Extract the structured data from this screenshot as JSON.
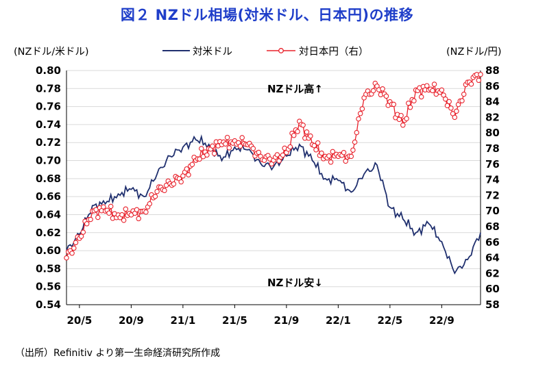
{
  "title": "図２ NZドル相場(対米ドル、日本円)の推移",
  "source": "（出所）Refinitiv より第一生命経済研究所作成",
  "chart_data": {
    "type": "line",
    "title": "図２ NZドル相場(対米ドル、日本円)の推移",
    "ylabel_left": "(NZドル/米ドル)",
    "ylabel_right": "(NZドル/円)",
    "x_ticks": [
      "20/5",
      "20/9",
      "21/1",
      "21/5",
      "21/9",
      "22/1",
      "22/5",
      "22/9"
    ],
    "y_left_ticks": [
      "0.80",
      "0.78",
      "0.76",
      "0.74",
      "0.72",
      "0.70",
      "0.68",
      "0.66",
      "0.64",
      "0.62",
      "0.60",
      "0.58",
      "0.56",
      "0.54"
    ],
    "y_right_ticks": [
      "88",
      "86",
      "84",
      "82",
      "80",
      "78",
      "76",
      "74",
      "72",
      "70",
      "68",
      "66",
      "64",
      "62",
      "60",
      "58"
    ],
    "ylim_left": [
      0.54,
      0.8
    ],
    "ylim_right": [
      58,
      88
    ],
    "grid": true,
    "legend_position": "top-center",
    "annotations": {
      "high": "NZドル高↑",
      "low": "NZドル安↓"
    },
    "colors": {
      "usd": "#1f2f6e",
      "jpy": "#e8202a",
      "title": "#1f3ec9",
      "grid": "#d9d9d9"
    },
    "series": [
      {
        "name": "対米ドル",
        "axis": "left",
        "x": [
          "20/4",
          "20/5",
          "20/6",
          "20/7",
          "20/8",
          "20/9",
          "20/10",
          "20/11",
          "20/12",
          "21/1",
          "21/2",
          "21/3",
          "21/4",
          "21/5",
          "21/6",
          "21/7",
          "21/8",
          "21/9",
          "21/10",
          "21/11",
          "21/12",
          "22/1",
          "22/2",
          "22/3",
          "22/4",
          "22/5",
          "22/6",
          "22/7",
          "22/8",
          "22/9",
          "22/10",
          "22/11",
          "22/12"
        ],
        "values": [
          0.6,
          0.618,
          0.65,
          0.652,
          0.663,
          0.668,
          0.66,
          0.685,
          0.705,
          0.715,
          0.723,
          0.718,
          0.7,
          0.715,
          0.712,
          0.697,
          0.693,
          0.705,
          0.718,
          0.7,
          0.68,
          0.678,
          0.665,
          0.685,
          0.695,
          0.648,
          0.635,
          0.62,
          0.63,
          0.61,
          0.575,
          0.59,
          0.62
        ]
      },
      {
        "name": "対日本円（右）",
        "axis": "right",
        "x": [
          "20/4",
          "20/5",
          "20/6",
          "20/7",
          "20/8",
          "20/9",
          "20/10",
          "20/11",
          "20/12",
          "21/1",
          "21/2",
          "21/3",
          "21/4",
          "21/5",
          "21/6",
          "21/7",
          "21/8",
          "21/9",
          "21/10",
          "21/11",
          "21/12",
          "22/1",
          "22/2",
          "22/3",
          "22/4",
          "22/5",
          "22/6",
          "22/7",
          "22/8",
          "22/9",
          "22/10",
          "22/11",
          "22/12"
        ],
        "values": [
          64.0,
          66.5,
          70.0,
          70.0,
          69.5,
          69.5,
          70.0,
          72.5,
          73.5,
          74.5,
          76.5,
          78.0,
          78.5,
          79.0,
          78.5,
          77.0,
          76.5,
          77.5,
          81.5,
          78.5,
          77.0,
          77.0,
          77.0,
          84.5,
          86.0,
          84.0,
          81.0,
          85.5,
          85.5,
          85.5,
          82.0,
          86.5,
          87.5
        ]
      }
    ]
  }
}
